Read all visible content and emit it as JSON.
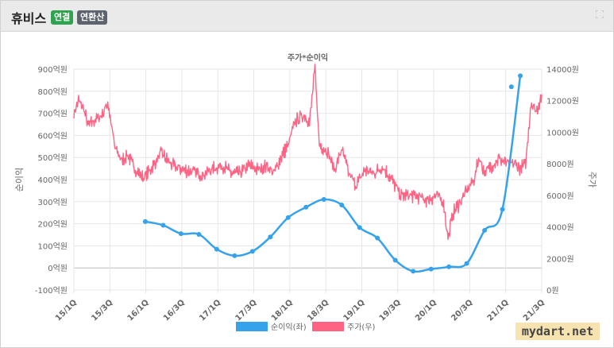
{
  "header": {
    "company": "휴비스",
    "badge_consolidated": "연결",
    "badge_annualized": "연환산"
  },
  "watermark": "mydart.net",
  "chart_data": {
    "type": "line",
    "title": "주가*순이익",
    "y_left": {
      "label": "순이익",
      "ylim": [
        -100,
        900
      ],
      "ticks": [
        "-100억원",
        "0억원",
        "100억원",
        "200억원",
        "300억원",
        "400억원",
        "500억원",
        "600억원",
        "700억원",
        "800억원",
        "900억원"
      ]
    },
    "y_right": {
      "label": "주가",
      "ylim": [
        0,
        14000
      ],
      "ticks": [
        "0원",
        "2000원",
        "4000원",
        "6000원",
        "8000원",
        "10000원",
        "12000원",
        "14000원"
      ]
    },
    "x_ticks": [
      "15/1Q",
      "15/3Q",
      "16/1Q",
      "16/3Q",
      "17/1Q",
      "17/3Q",
      "18/1Q",
      "18/3Q",
      "19/1Q",
      "19/3Q",
      "20/1Q",
      "20/3Q",
      "21/1Q",
      "21/3Q"
    ],
    "x_range": [
      0,
      26.2
    ],
    "grid": true,
    "legend_position": "bottom",
    "series": [
      {
        "name": "순이익(좌)",
        "axis": "left",
        "color": "#36a2eb",
        "x": [
          4,
          5,
          6,
          7,
          8,
          9,
          10,
          11,
          12,
          13,
          14,
          15,
          16,
          17,
          18,
          19,
          20,
          21,
          22,
          23,
          24,
          25
        ],
        "values": [
          210,
          193,
          155,
          152,
          85,
          55,
          75,
          140,
          228,
          275,
          310,
          285,
          183,
          135,
          35,
          -15,
          -5,
          5,
          20,
          170,
          265,
          870
        ],
        "extra_points": [
          {
            "x": 24.5,
            "value": 820
          }
        ]
      },
      {
        "name": "주가(우)",
        "axis": "right",
        "color": "#ff6384",
        "anchors": [
          [
            0,
            11200
          ],
          [
            0.3,
            12100
          ],
          [
            0.5,
            11700
          ],
          [
            0.8,
            10400
          ],
          [
            1.2,
            10800
          ],
          [
            1.6,
            11100
          ],
          [
            1.9,
            11900
          ],
          [
            2.3,
            9000
          ],
          [
            2.7,
            8200
          ],
          [
            3.0,
            8600
          ],
          [
            3.4,
            7700
          ],
          [
            3.9,
            7100
          ],
          [
            4.4,
            7800
          ],
          [
            4.9,
            8700
          ],
          [
            5.3,
            8100
          ],
          [
            5.7,
            7800
          ],
          [
            6.2,
            7600
          ],
          [
            6.7,
            7500
          ],
          [
            7.2,
            7300
          ],
          [
            7.8,
            7700
          ],
          [
            8.3,
            7900
          ],
          [
            8.8,
            7400
          ],
          [
            9.3,
            7400
          ],
          [
            9.8,
            7900
          ],
          [
            10.3,
            7600
          ],
          [
            10.8,
            7900
          ],
          [
            11.2,
            7400
          ],
          [
            11.6,
            8400
          ],
          [
            12.0,
            9200
          ],
          [
            12.4,
            10700
          ],
          [
            12.9,
            11100
          ],
          [
            13.2,
            10600
          ],
          [
            13.5,
            14000
          ],
          [
            13.75,
            9200
          ],
          [
            14.2,
            8800
          ],
          [
            14.6,
            7600
          ],
          [
            15.0,
            8900
          ],
          [
            15.4,
            7400
          ],
          [
            15.8,
            6600
          ],
          [
            16.3,
            7600
          ],
          [
            16.8,
            7400
          ],
          [
            17.3,
            7800
          ],
          [
            17.8,
            7000
          ],
          [
            18.3,
            6000
          ],
          [
            18.8,
            6000
          ],
          [
            19.3,
            5900
          ],
          [
            19.8,
            5700
          ],
          [
            20.3,
            6000
          ],
          [
            20.7,
            5600
          ],
          [
            20.95,
            3200
          ],
          [
            21.2,
            4800
          ],
          [
            21.6,
            5500
          ],
          [
            22.0,
            6300
          ],
          [
            22.4,
            7000
          ],
          [
            22.7,
            8400
          ],
          [
            23.0,
            7400
          ],
          [
            23.4,
            7900
          ],
          [
            23.8,
            8300
          ],
          [
            24.3,
            8000
          ],
          [
            24.7,
            8000
          ],
          [
            25.0,
            7700
          ],
          [
            25.3,
            8000
          ],
          [
            25.6,
            11900
          ],
          [
            25.9,
            11300
          ],
          [
            26.2,
            12400
          ]
        ]
      }
    ]
  }
}
